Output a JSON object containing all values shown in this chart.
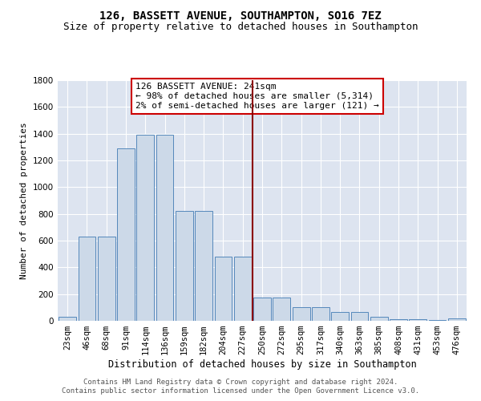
{
  "title": "126, BASSETT AVENUE, SOUTHAMPTON, SO16 7EZ",
  "subtitle": "Size of property relative to detached houses in Southampton",
  "xlabel": "Distribution of detached houses by size in Southampton",
  "ylabel": "Number of detached properties",
  "categories": [
    "23sqm",
    "46sqm",
    "68sqm",
    "91sqm",
    "114sqm",
    "136sqm",
    "159sqm",
    "182sqm",
    "204sqm",
    "227sqm",
    "250sqm",
    "272sqm",
    "295sqm",
    "317sqm",
    "340sqm",
    "363sqm",
    "385sqm",
    "408sqm",
    "431sqm",
    "453sqm",
    "476sqm"
  ],
  "values": [
    30,
    630,
    630,
    1290,
    1390,
    1390,
    820,
    820,
    480,
    480,
    175,
    175,
    105,
    105,
    65,
    65,
    30,
    15,
    10,
    5,
    18
  ],
  "bar_color": "#ccd9e8",
  "bar_edge_color": "#5588bb",
  "vline_pos": 9.5,
  "vline_color": "#8b0000",
  "annotation_text": "126 BASSETT AVENUE: 241sqm\n← 98% of detached houses are smaller (5,314)\n2% of semi-detached houses are larger (121) →",
  "annotation_box_color": "#ffffff",
  "annotation_box_edge_color": "#cc0000",
  "ylim": [
    0,
    1800
  ],
  "yticks": [
    0,
    200,
    400,
    600,
    800,
    1000,
    1200,
    1400,
    1600,
    1800
  ],
  "background_color": "#dde4f0",
  "footer": "Contains HM Land Registry data © Crown copyright and database right 2024.\nContains public sector information licensed under the Open Government Licence v3.0.",
  "title_fontsize": 10,
  "subtitle_fontsize": 9,
  "xlabel_fontsize": 8.5,
  "ylabel_fontsize": 8,
  "tick_fontsize": 7.5,
  "annotation_fontsize": 8,
  "footer_fontsize": 6.5
}
